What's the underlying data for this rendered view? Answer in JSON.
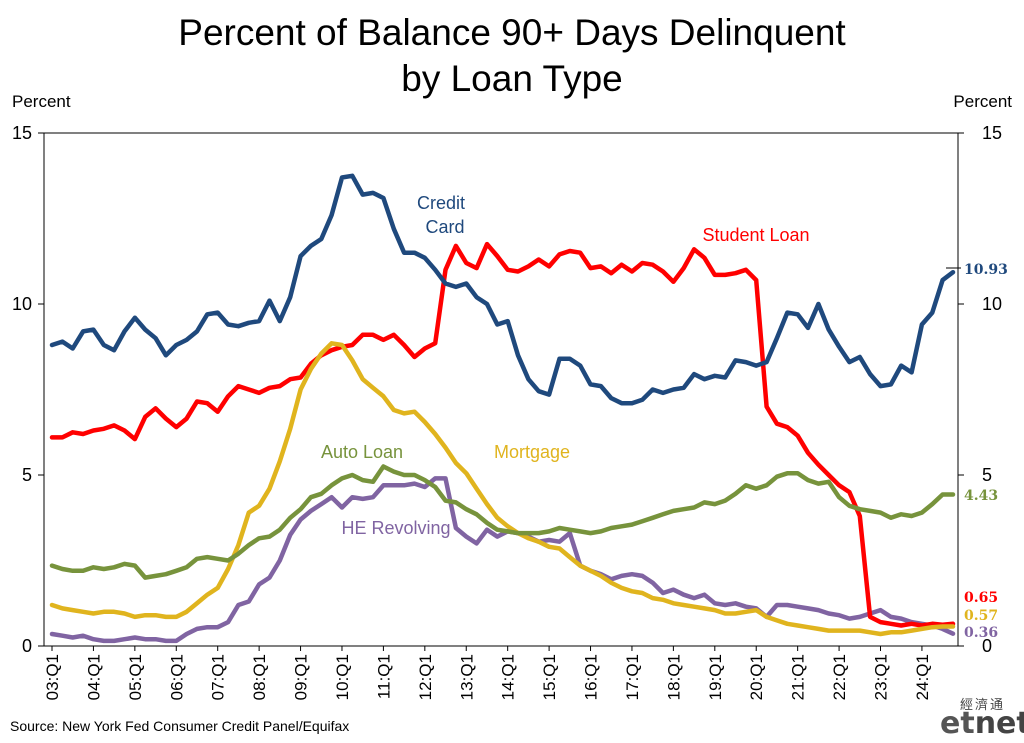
{
  "title_line1": "Percent of Balance 90+ Days Delinquent",
  "title_line2": "by Loan Type",
  "left_axis_label": "Percent",
  "right_axis_label": "Percent",
  "source": "Source: New York Fed Consumer Credit Panel/Equifax",
  "brand": {
    "cn": "經濟通",
    "logo_et": "et",
    "logo_net": "net"
  },
  "chart_data": {
    "type": "line",
    "ylim": [
      0,
      15
    ],
    "yticks": [
      0,
      5,
      10,
      15
    ],
    "x_start": "03:Q1",
    "x_end": "24:Q2",
    "x_tick_labels": [
      "03:Q1",
      "04:Q1",
      "05:Q1",
      "06:Q1",
      "07:Q1",
      "08:Q1",
      "09:Q1",
      "10:Q1",
      "11:Q1",
      "12:Q1",
      "13:Q1",
      "14:Q1",
      "15:Q1",
      "16:Q1",
      "17:Q1",
      "18:Q1",
      "19:Q1",
      "20:Q1",
      "21:Q1",
      "22:Q1",
      "23:Q1",
      "24:Q1"
    ],
    "series": [
      {
        "name": "Credit Card",
        "label_lines": [
          "Credit",
          "Card"
        ],
        "color": "#1F497D",
        "end_label": "10.93",
        "values": [
          8.8,
          8.9,
          8.7,
          9.2,
          9.25,
          8.8,
          8.65,
          9.2,
          9.6,
          9.25,
          9.0,
          8.5,
          8.8,
          8.95,
          9.2,
          9.7,
          9.75,
          9.4,
          9.35,
          9.45,
          9.5,
          10.1,
          9.5,
          10.2,
          11.4,
          11.7,
          11.9,
          12.6,
          13.7,
          13.75,
          13.2,
          13.25,
          13.1,
          12.2,
          11.5,
          11.5,
          11.35,
          11.0,
          10.6,
          10.5,
          10.6,
          10.2,
          10.0,
          9.4,
          9.5,
          8.5,
          7.8,
          7.45,
          7.35,
          8.4,
          8.4,
          8.2,
          7.65,
          7.6,
          7.25,
          7.1,
          7.1,
          7.2,
          7.5,
          7.4,
          7.5,
          7.55,
          7.95,
          7.8,
          7.9,
          7.85,
          8.35,
          8.3,
          8.2,
          8.3,
          9.0,
          9.75,
          9.7,
          9.3,
          10.0,
          9.25,
          8.75,
          8.3,
          8.45,
          7.95,
          7.6,
          7.65,
          8.2,
          8.0,
          9.4,
          9.75,
          10.7,
          10.93
        ]
      },
      {
        "name": "Student Loan",
        "label_lines": [
          "Student Loan"
        ],
        "color": "#FF0000",
        "end_label": "0.65",
        "values": [
          6.1,
          6.1,
          6.25,
          6.2,
          6.3,
          6.35,
          6.45,
          6.3,
          6.05,
          6.7,
          6.95,
          6.65,
          6.4,
          6.65,
          7.15,
          7.1,
          6.85,
          7.3,
          7.6,
          7.5,
          7.4,
          7.55,
          7.6,
          7.8,
          7.85,
          8.25,
          8.5,
          8.65,
          8.75,
          8.8,
          9.1,
          9.1,
          8.95,
          9.1,
          8.8,
          8.45,
          8.7,
          8.85,
          11.0,
          11.7,
          11.2,
          11.05,
          11.75,
          11.4,
          11.0,
          10.95,
          11.1,
          11.3,
          11.1,
          11.45,
          11.55,
          11.5,
          11.05,
          11.1,
          10.9,
          11.15,
          10.95,
          11.2,
          11.15,
          10.95,
          10.65,
          11.05,
          11.6,
          11.35,
          10.85,
          10.85,
          10.9,
          11.0,
          10.7,
          7.0,
          6.5,
          6.4,
          6.15,
          5.65,
          5.3,
          5.0,
          4.7,
          4.5,
          3.8,
          0.85,
          0.7,
          0.65,
          0.6,
          0.65,
          0.6,
          0.65,
          0.62,
          0.65
        ]
      },
      {
        "name": "Mortgage",
        "label_lines": [
          "Mortgage"
        ],
        "color": "#E0B41E",
        "end_label": "0.57",
        "values": [
          1.2,
          1.1,
          1.05,
          1.0,
          0.95,
          1.0,
          1.0,
          0.95,
          0.85,
          0.9,
          0.9,
          0.85,
          0.85,
          1.0,
          1.25,
          1.5,
          1.7,
          2.25,
          2.95,
          3.9,
          4.1,
          4.6,
          5.4,
          6.35,
          7.5,
          8.1,
          8.55,
          8.85,
          8.8,
          8.35,
          7.8,
          7.55,
          7.3,
          6.9,
          6.8,
          6.85,
          6.55,
          6.2,
          5.8,
          5.35,
          5.05,
          4.6,
          4.15,
          3.75,
          3.5,
          3.3,
          3.15,
          3.05,
          2.9,
          2.85,
          2.6,
          2.35,
          2.2,
          2.05,
          1.85,
          1.7,
          1.6,
          1.55,
          1.4,
          1.35,
          1.25,
          1.2,
          1.15,
          1.1,
          1.05,
          0.95,
          0.95,
          1.0,
          1.05,
          0.85,
          0.75,
          0.65,
          0.6,
          0.55,
          0.5,
          0.45,
          0.45,
          0.45,
          0.45,
          0.4,
          0.35,
          0.4,
          0.4,
          0.45,
          0.5,
          0.55,
          0.57,
          0.57
        ]
      },
      {
        "name": "Auto Loan",
        "label_lines": [
          "Auto Loan"
        ],
        "color": "#77933C",
        "end_label": "4.43",
        "values": [
          2.35,
          2.25,
          2.2,
          2.2,
          2.3,
          2.25,
          2.3,
          2.4,
          2.35,
          2.0,
          2.05,
          2.1,
          2.2,
          2.3,
          2.55,
          2.6,
          2.55,
          2.5,
          2.7,
          2.95,
          3.15,
          3.2,
          3.4,
          3.75,
          4.0,
          4.35,
          4.45,
          4.7,
          4.9,
          5.0,
          4.85,
          4.8,
          5.25,
          5.1,
          5.0,
          5.0,
          4.85,
          4.65,
          4.25,
          4.2,
          4.0,
          3.85,
          3.6,
          3.4,
          3.35,
          3.3,
          3.3,
          3.3,
          3.35,
          3.45,
          3.4,
          3.35,
          3.3,
          3.35,
          3.45,
          3.5,
          3.55,
          3.65,
          3.75,
          3.85,
          3.95,
          4.0,
          4.05,
          4.2,
          4.15,
          4.25,
          4.45,
          4.7,
          4.6,
          4.7,
          4.95,
          5.05,
          5.05,
          4.85,
          4.75,
          4.8,
          4.35,
          4.1,
          4.0,
          3.95,
          3.9,
          3.75,
          3.85,
          3.8,
          3.9,
          4.15,
          4.43,
          4.43
        ]
      },
      {
        "name": "HE Revolving",
        "label_lines": [
          "HE Revolving"
        ],
        "color": "#8064A2",
        "end_label": "0.36",
        "values": [
          0.35,
          0.3,
          0.25,
          0.3,
          0.2,
          0.15,
          0.15,
          0.2,
          0.25,
          0.2,
          0.2,
          0.15,
          0.15,
          0.35,
          0.5,
          0.55,
          0.55,
          0.7,
          1.2,
          1.3,
          1.8,
          2.0,
          2.5,
          3.25,
          3.7,
          3.95,
          4.15,
          4.35,
          4.05,
          4.35,
          4.3,
          4.35,
          4.7,
          4.7,
          4.7,
          4.75,
          4.65,
          4.9,
          4.9,
          3.45,
          3.2,
          3.0,
          3.4,
          3.2,
          3.35,
          3.3,
          3.2,
          3.05,
          3.1,
          3.05,
          3.3,
          2.35,
          2.2,
          2.1,
          1.95,
          2.05,
          2.1,
          2.05,
          1.85,
          1.55,
          1.65,
          1.5,
          1.4,
          1.5,
          1.25,
          1.2,
          1.25,
          1.15,
          1.1,
          0.85,
          1.2,
          1.2,
          1.15,
          1.1,
          1.05,
          0.95,
          0.9,
          0.8,
          0.85,
          0.95,
          1.05,
          0.85,
          0.8,
          0.7,
          0.65,
          0.6,
          0.5,
          0.36
        ]
      }
    ]
  }
}
